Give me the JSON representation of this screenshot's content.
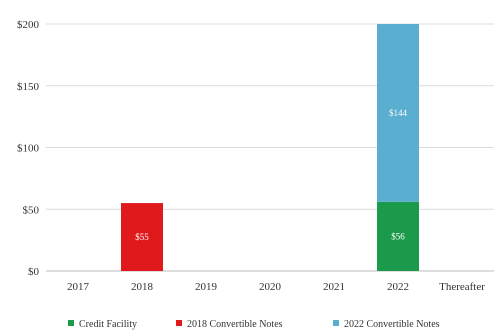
{
  "chart_data": {
    "type": "bar",
    "stacked": true,
    "categories": [
      "2017",
      "2018",
      "2019",
      "2020",
      "2021",
      "2022",
      "Thereafter"
    ],
    "series": [
      {
        "name": "Credit Facility",
        "color": "#1a9a4a",
        "values": [
          0,
          0,
          0,
          0,
          0,
          56,
          0
        ],
        "labels": [
          "",
          "",
          "",
          "",
          "",
          "$56",
          ""
        ]
      },
      {
        "name": "2018 Convertible Notes",
        "color": "#e0191c",
        "values": [
          0,
          55,
          0,
          0,
          0,
          0,
          0
        ],
        "labels": [
          "",
          "$55",
          "",
          "",
          "",
          "",
          ""
        ]
      },
      {
        "name": "2022 Convertible Notes",
        "color": "#5aaed0",
        "values": [
          0,
          0,
          0,
          0,
          0,
          144,
          0
        ],
        "labels": [
          "",
          "",
          "",
          "",
          "",
          "$144",
          ""
        ]
      }
    ],
    "yticks": [
      "$0",
      "$50",
      "$100",
      "$150",
      "$200"
    ],
    "ylim": [
      0,
      200
    ],
    "grid": true,
    "legend": "bottom"
  }
}
